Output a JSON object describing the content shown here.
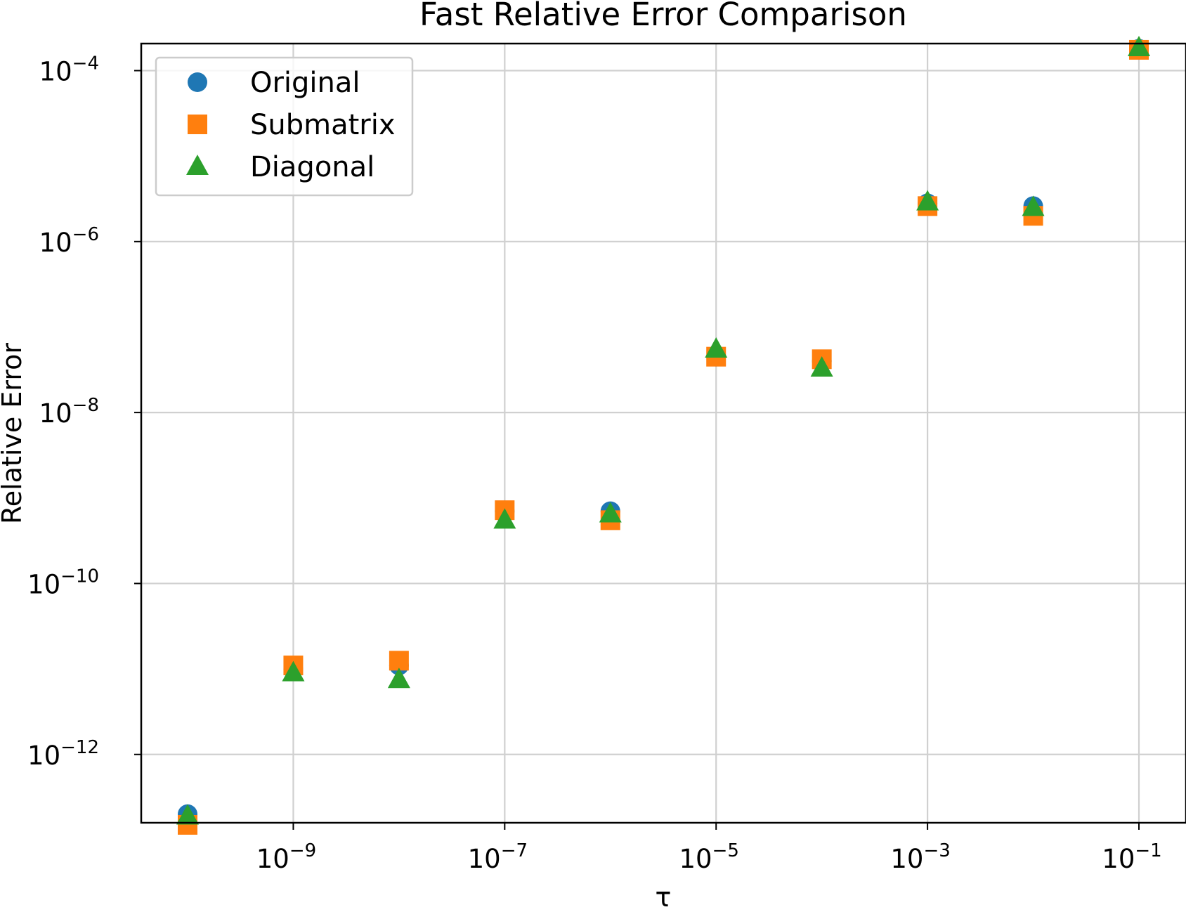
{
  "chart_data": {
    "type": "scatter",
    "title": "Fast Relative Error Comparison",
    "xlabel": "τ",
    "ylabel": "Relative Error",
    "xscale": "log",
    "yscale": "log",
    "xlim": [
      5e-11,
      0.3
    ],
    "ylim": [
      6e-14,
      0.0005
    ],
    "grid": true,
    "legend_position": "top-left",
    "x": [
      1e-10,
      1e-09,
      1e-08,
      1e-07,
      1e-06,
      1e-05,
      0.0001,
      0.001,
      0.01,
      0.1
    ],
    "x_ticks": [
      {
        "value": 1e-09,
        "base": "10",
        "exp": "−9"
      },
      {
        "value": 1e-07,
        "base": "10",
        "exp": "−7"
      },
      {
        "value": 1e-05,
        "base": "10",
        "exp": "−5"
      },
      {
        "value": 0.001,
        "base": "10",
        "exp": "−3"
      },
      {
        "value": 0.1,
        "base": "10",
        "exp": "−1"
      }
    ],
    "y_ticks": [
      {
        "value": 1e-12,
        "base": "10",
        "exp": "−12"
      },
      {
        "value": 1e-10,
        "base": "10",
        "exp": "−10"
      },
      {
        "value": 1e-08,
        "base": "10",
        "exp": "−8"
      },
      {
        "value": 1e-06,
        "base": "10",
        "exp": "−6"
      },
      {
        "value": 0.0001,
        "base": "10",
        "exp": "−4"
      }
    ],
    "series": [
      {
        "name": "Original",
        "marker": "circle",
        "color": "#1f77b4",
        "values": [
          2e-13,
          1e-11,
          1.1e-11,
          7e-10,
          7e-10,
          4.5e-08,
          4e-08,
          2.8e-06,
          2.6e-06,
          0.00018
        ]
      },
      {
        "name": "Submatrix",
        "marker": "square",
        "color": "#ff7f0e",
        "values": [
          1.5e-13,
          1.1e-11,
          1.25e-11,
          7.2e-10,
          5.5e-10,
          4.5e-08,
          4.2e-08,
          2.6e-06,
          2e-06,
          0.000175
        ]
      },
      {
        "name": "Diagonal",
        "marker": "triangle",
        "color": "#2ca02c",
        "values": [
          1.9e-13,
          9e-12,
          7.5e-12,
          5.5e-10,
          6.5e-10,
          5.5e-08,
          3.3e-08,
          2.9e-06,
          2.5e-06,
          0.000185
        ]
      }
    ]
  }
}
